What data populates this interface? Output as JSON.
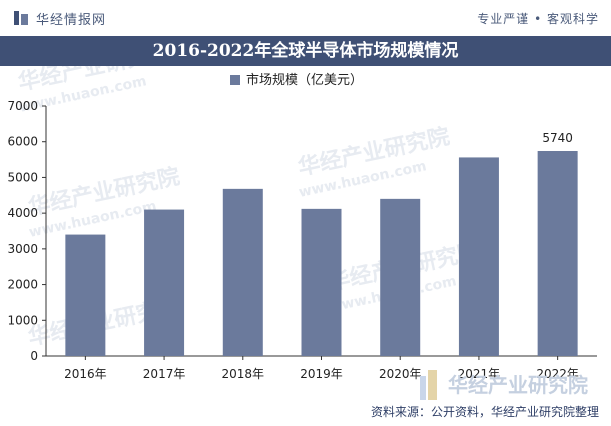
{
  "header": {
    "brand": "华经情报网",
    "slogan": "专业严谨 • 客观科学"
  },
  "title": "2016-2022年全球半导体市场规模情况",
  "source": "资料来源：公开资料，华经产业研究院整理",
  "watermark": {
    "cn": "华经产业研究院",
    "url": "www.huaon.com"
  },
  "colors": {
    "bar": "#6b7a9c",
    "title_bg": "#3f5075"
  },
  "chart_data": {
    "type": "bar",
    "title": "2016-2022年全球半导体市场规模情况",
    "legend": "市场规模（亿美元）",
    "legend_position": "top-center",
    "categories": [
      "2016年",
      "2017年",
      "2018年",
      "2019年",
      "2020年",
      "2021年",
      "2022年"
    ],
    "values": [
      3400,
      4100,
      4680,
      4120,
      4400,
      5560,
      5740
    ],
    "data_labels": [
      "",
      "",
      "",
      "",
      "",
      "",
      "5740"
    ],
    "y_ticks": [
      "0",
      "1000",
      "2000",
      "3000",
      "4000",
      "5000",
      "6000",
      "7000"
    ],
    "ylim": [
      0,
      7000
    ],
    "grid": false
  }
}
